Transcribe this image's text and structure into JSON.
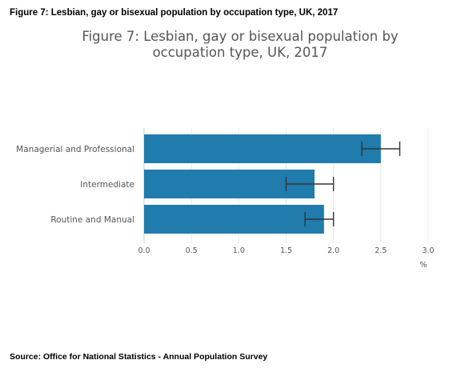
{
  "header": {
    "figure_caption": "Figure 7: Lesbian, gay or bisexual population by occupation type, UK, 2017",
    "source": "Source: Office for National Statistics - Annual Population Survey"
  },
  "colors": {
    "bar": "#1f7cac",
    "error_bar": "#333333",
    "grid": "#e8e8e8",
    "axis": "#cccccc"
  },
  "chart_data": {
    "type": "bar",
    "orientation": "horizontal",
    "title": "Figure 7: Lesbian, gay or bisexual population by occupation type, UK, 2017",
    "categories": [
      "Managerial and Professional",
      "Intermediate",
      "Routine and Manual"
    ],
    "values": [
      2.5,
      1.8,
      1.9
    ],
    "error_low": [
      2.3,
      1.5,
      1.7
    ],
    "error_high": [
      2.7,
      2.0,
      2.0
    ],
    "xlabel": "%",
    "ylabel": "",
    "xlim": [
      0,
      3.0
    ],
    "xticks": [
      "0.0",
      "0.5",
      "1.0",
      "1.5",
      "2.0",
      "2.5",
      "3.0"
    ],
    "grid": true,
    "legend": "none"
  }
}
